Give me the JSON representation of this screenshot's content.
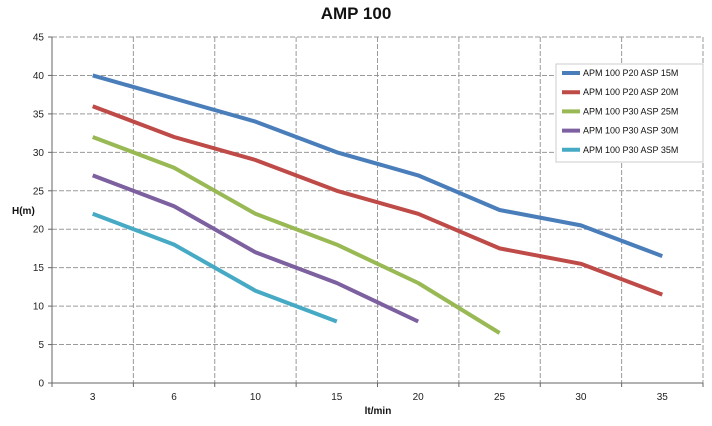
{
  "chart_data": {
    "type": "line",
    "title": "AMP 100",
    "xlabel": "lt/min",
    "ylabel": "H(m)",
    "categories": [
      "3",
      "6",
      "10",
      "15",
      "20",
      "25",
      "30",
      "35"
    ],
    "ylim": [
      0,
      45
    ],
    "yticks": [
      0,
      5,
      10,
      15,
      20,
      25,
      30,
      35,
      40,
      45
    ],
    "grid": true,
    "legend_position": "top-right",
    "series": [
      {
        "name": "APM 100 P20 ASP 15M",
        "color": "#4a7ebb",
        "values": [
          40,
          37,
          34,
          30,
          27,
          22.5,
          20.5,
          16.5
        ]
      },
      {
        "name": "APM 100 P20 ASP 20M",
        "color": "#be4b48",
        "values": [
          36,
          32,
          29,
          25,
          22,
          17.5,
          15.5,
          11.5
        ]
      },
      {
        "name": "APM 100 P30 ASP 25M",
        "color": "#98b954",
        "values": [
          32,
          28,
          22,
          18,
          13,
          6.5,
          null,
          null
        ]
      },
      {
        "name": "APM 100 P30 ASP 30M",
        "color": "#7d60a0",
        "values": [
          27,
          23,
          17,
          13,
          8,
          null,
          null,
          null
        ]
      },
      {
        "name": "APM 100 P30 ASP 35M",
        "color": "#46aac5",
        "values": [
          22,
          18,
          12,
          8,
          null,
          null,
          null,
          null
        ]
      }
    ]
  }
}
